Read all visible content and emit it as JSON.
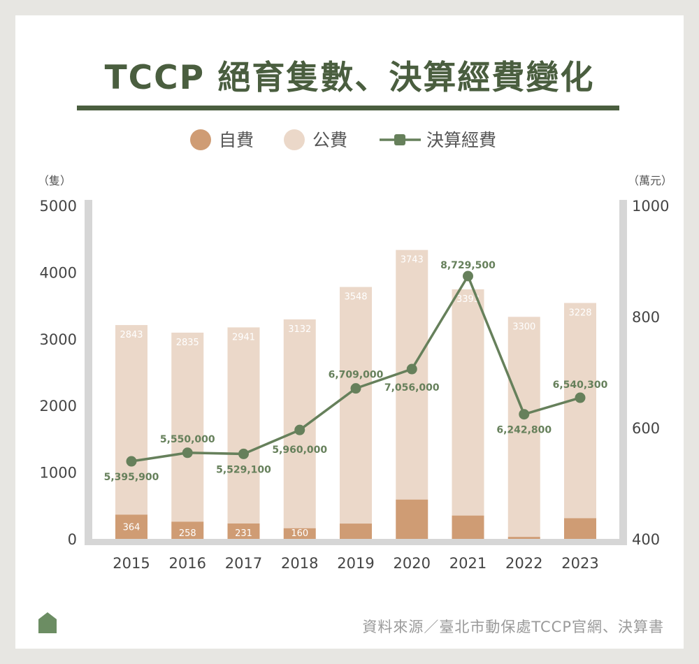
{
  "title": "TCCP 絕育隻數、決算經費變化",
  "source": "資料來源／臺北市動保處TCCP官網、決算書",
  "colors": {
    "self_paid": "#cf9c74",
    "public_paid": "#ebd8c9",
    "budget_line": "#66805b",
    "title": "#4a5e3f",
    "axis": "#d6d6d6",
    "home_icon": "#6c8d63"
  },
  "chart_data": {
    "type": "bar",
    "stacked": true,
    "categories": [
      "2015",
      "2016",
      "2017",
      "2018",
      "2019",
      "2020",
      "2021",
      "2022",
      "2023"
    ],
    "series": [
      {
        "name": "自費",
        "axis": "left",
        "values": [
          364,
          258,
          231,
          160,
          230,
          590,
          350,
          30,
          310
        ],
        "labels": [
          "364",
          "258",
          "231",
          "160",
          "",
          "",
          "",
          "",
          ""
        ]
      },
      {
        "name": "公費",
        "axis": "left",
        "values": [
          2843,
          2835,
          2941,
          3132,
          3548,
          3743,
          3393,
          3300,
          3228
        ],
        "labels": [
          "2843",
          "2835",
          "2941",
          "3132",
          "3548",
          "3743",
          "3393",
          "3300",
          "3228"
        ]
      },
      {
        "name": "決算經費",
        "type": "line",
        "axis": "right",
        "values": [
          5395900,
          5550000,
          5529100,
          5960000,
          6709000,
          7056000,
          8729500,
          6242800,
          6540300
        ],
        "labels": [
          "5,395,900",
          "5,550,000",
          "5,529,100",
          "5,960,000",
          "6,709,000",
          "7,056,000",
          "8,729,500",
          "6,242,800",
          "6,540,300"
        ]
      }
    ],
    "ylabel": "（隻）",
    "ylim": [
      0,
      5000
    ],
    "yticks": [
      "0",
      "1000",
      "2000",
      "3000",
      "4000",
      "5000"
    ],
    "y2label": "（萬元）",
    "y2lim": [
      400,
      1000
    ],
    "y2ticks": [
      "400",
      "600",
      "800",
      "1000"
    ],
    "legend": [
      "自費",
      "公費",
      "決算經費"
    ],
    "legend_position": "top-center"
  }
}
